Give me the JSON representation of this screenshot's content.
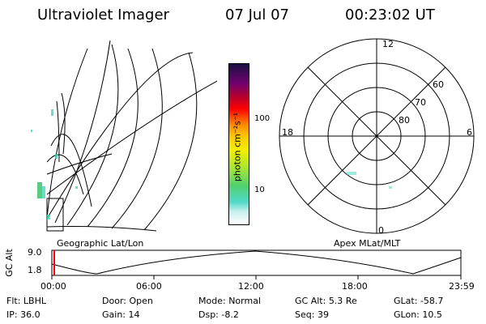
{
  "header": {
    "app_title": "Ultraviolet Imager",
    "date": "07 Jul 07",
    "time": "00:23:02 UT"
  },
  "geo_panel": {
    "caption": "Geographic Lat/Lon"
  },
  "colorbar": {
    "unit": "photon cm⁻²s⁻¹",
    "ticks": [
      "100",
      "10"
    ]
  },
  "polar_panel": {
    "caption": "Apex MLat/MLT",
    "mlt_labels": {
      "top": "12",
      "left": "18",
      "right": "6",
      "bottom": "0"
    },
    "lat_labels": [
      "60",
      "70",
      "80"
    ]
  },
  "altitude_bar": {
    "axis_title": "GC Alt",
    "y_max": "9.0",
    "y_min": "1.8",
    "time_ticks": [
      "00:00",
      "06:00",
      "12:00",
      "18:00",
      "23:59"
    ]
  },
  "status": {
    "row1": [
      {
        "key": "Flt:",
        "value": "LBHL"
      },
      {
        "key": "Door:",
        "value": "Open"
      },
      {
        "key": "Mode:",
        "value": "Normal"
      },
      {
        "key": "GC Alt:",
        "value": "5.3 Re"
      },
      {
        "key": "GLat:",
        "value": "-58.7"
      }
    ],
    "row2": [
      {
        "key": "IP:",
        "value": "36.0"
      },
      {
        "key": "Gain:",
        "value": "14"
      },
      {
        "key": "Dsp:",
        "value": "-8.2"
      },
      {
        "key": "Seq:",
        "value": "39"
      },
      {
        "key": "GLon:",
        "value": "10.5"
      }
    ]
  },
  "colors": {
    "cursor": "#ff0000",
    "aurora": "#40d8b8",
    "aurora_strong": "#30c060"
  }
}
